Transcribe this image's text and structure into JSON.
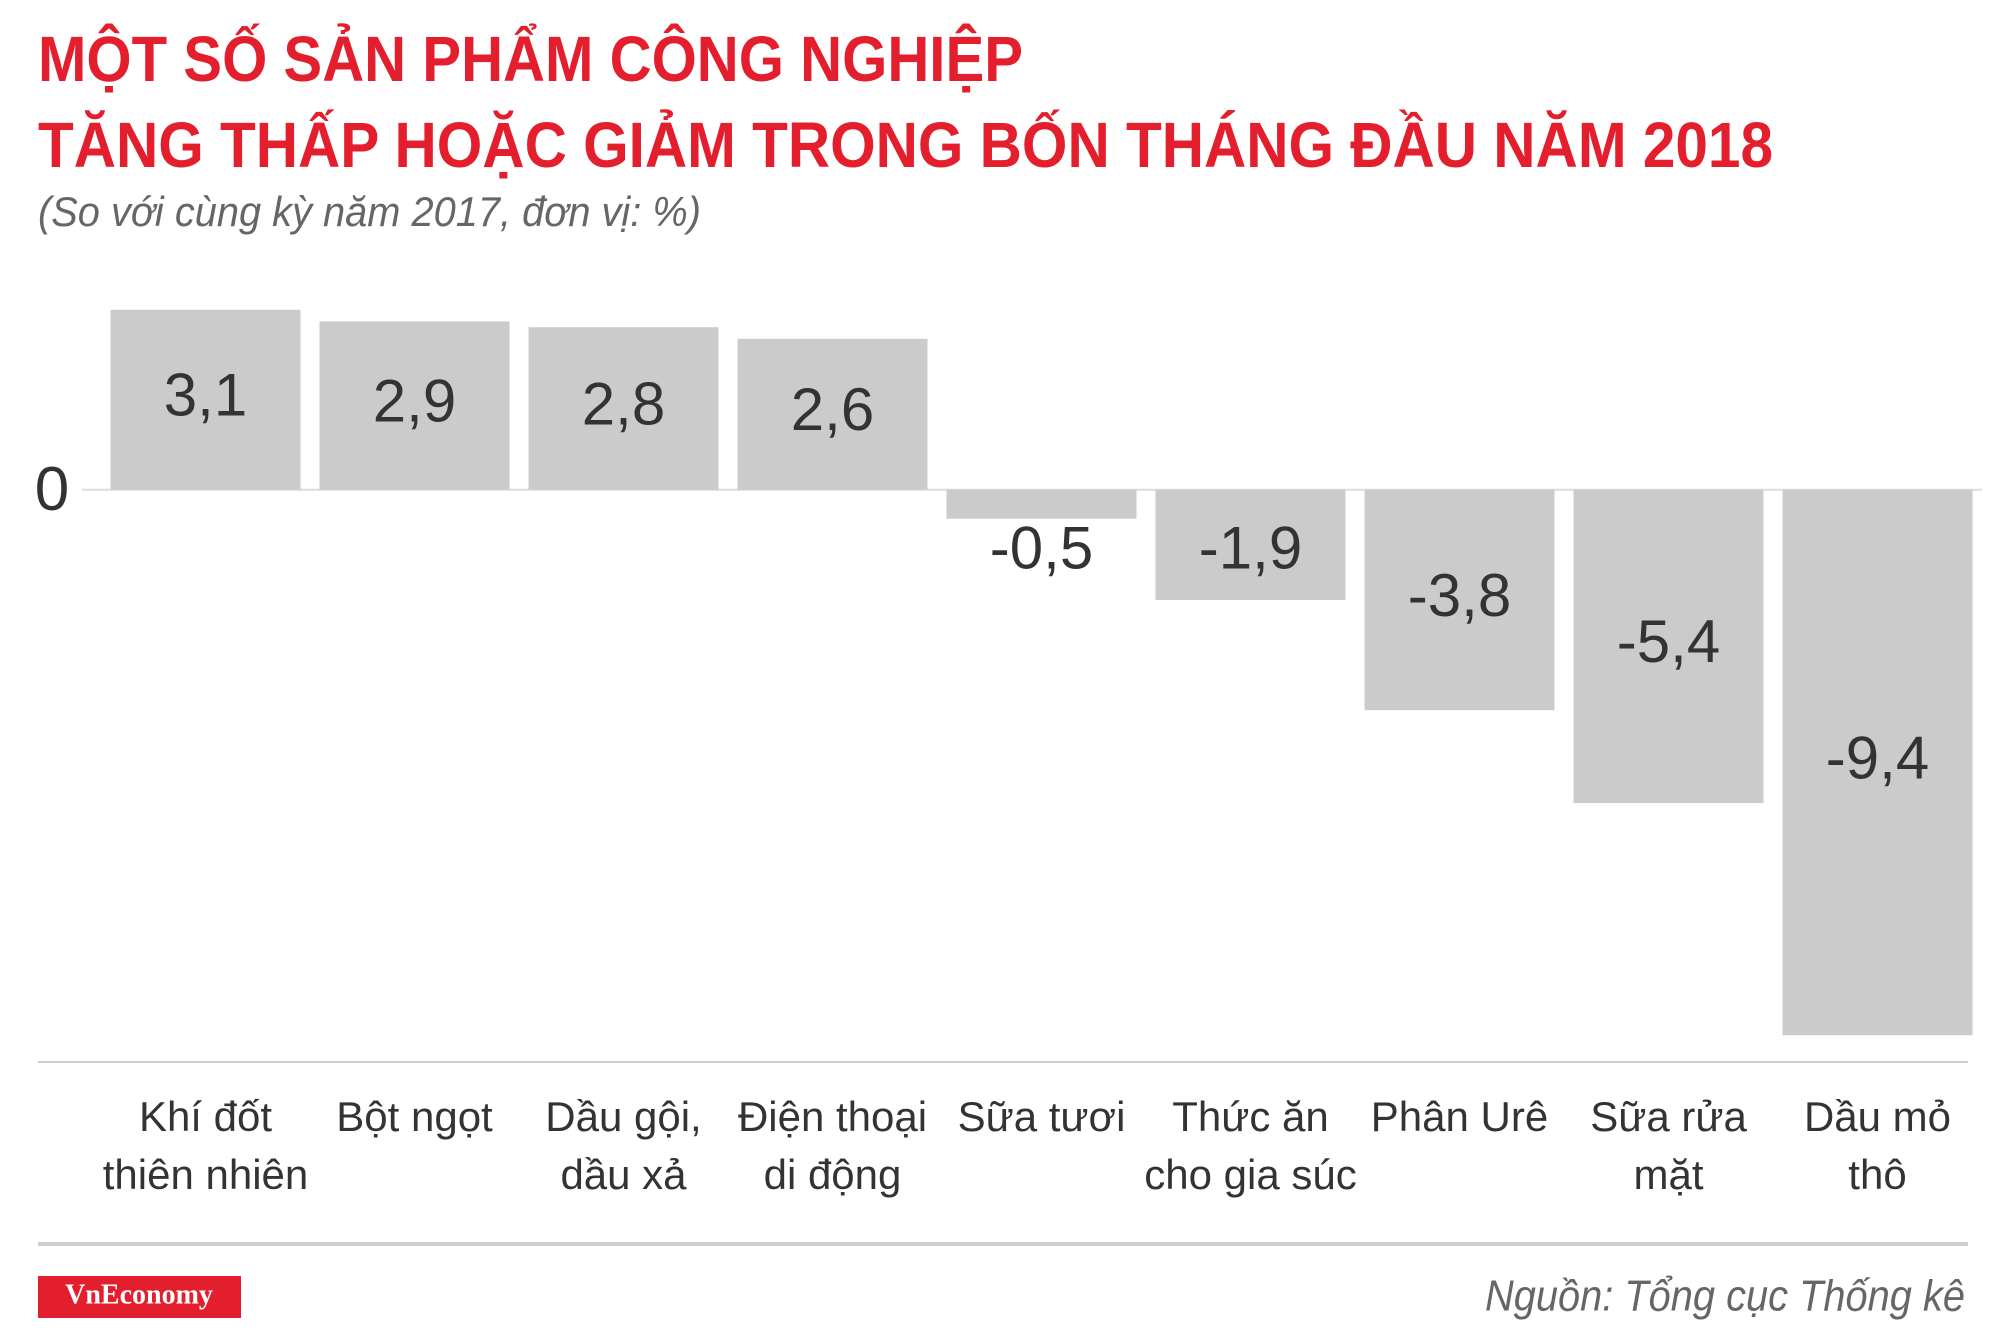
{
  "chart_data": {
    "type": "bar",
    "title": [
      "MỘT SỐ SẢN PHẨM CÔNG NGHIỆP",
      "TĂNG THẤP HOẶC GIẢM TRONG BỐN THÁNG ĐẦU NĂM 2018"
    ],
    "subtitle": "(So với cùng kỳ năm 2017, đơn vị: %)",
    "categories": [
      "Khí đốt\nthiên nhiên",
      "Bột ngọt",
      "Dầu gội,\ndầu xả",
      "Điện thoại\ndi động",
      "Sữa tươi",
      "Thức ăn\ncho gia súc",
      "Phân Urê",
      "Sữa rửa\nmặt",
      "Dầu mỏ\nthô"
    ],
    "values": [
      3.1,
      2.9,
      2.8,
      2.6,
      -0.5,
      -1.9,
      -3.8,
      -5.4,
      -9.4
    ],
    "value_labels": [
      "3,1",
      "2,9",
      "2,8",
      "2,6",
      "-0,5",
      "-1,9",
      "-3,8",
      "-5,4",
      "-9,4"
    ],
    "color": "#cccbcb",
    "ylim": [
      -9.5,
      3.2
    ],
    "yticks": [
      0
    ],
    "brand": "VnEconomy",
    "source": "Nguồn: Tổng cục Thống kê"
  }
}
